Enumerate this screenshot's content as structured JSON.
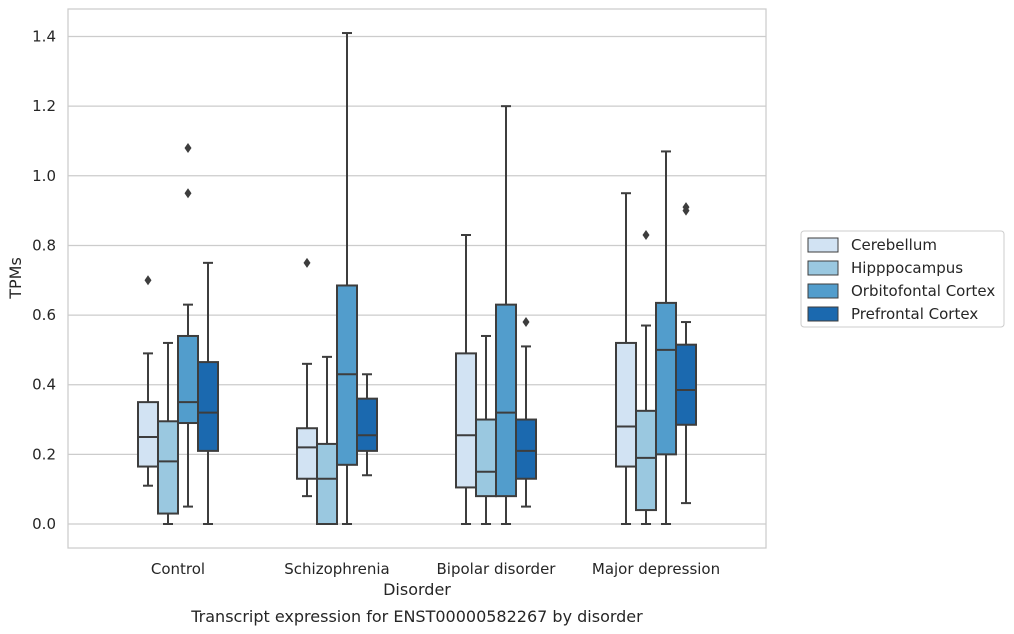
{
  "chart_data": {
    "type": "box",
    "title": "Transcript expression for ENST00000582267 by disorder",
    "xlabel": "Disorder",
    "ylabel": "TPMs",
    "ylim": [
      -0.07,
      1.48
    ],
    "yticks": [
      0.0,
      0.2,
      0.4,
      0.6,
      0.8,
      1.0,
      1.2,
      1.4
    ],
    "ytick_labels": [
      "0.0",
      "0.2",
      "0.4",
      "0.6",
      "0.8",
      "1.0",
      "1.2",
      "1.4"
    ],
    "grid": "horizontal",
    "legend_position": "right",
    "categories": [
      "Control",
      "Schizophrenia",
      "Bipolar disorder",
      "Major depression"
    ],
    "series": [
      {
        "name": "Cerebellum",
        "color": "#d2e3f3",
        "boxes": [
          {
            "min": 0.11,
            "q1": 0.165,
            "median": 0.25,
            "q3": 0.35,
            "max": 0.49,
            "outliers": [
              0.7
            ]
          },
          {
            "min": 0.08,
            "q1": 0.13,
            "median": 0.22,
            "q3": 0.275,
            "max": 0.46,
            "outliers": [
              0.75
            ]
          },
          {
            "min": 0.0,
            "q1": 0.105,
            "median": 0.255,
            "q3": 0.49,
            "max": 0.83,
            "outliers": []
          },
          {
            "min": 0.0,
            "q1": 0.165,
            "median": 0.28,
            "q3": 0.52,
            "max": 0.95,
            "outliers": []
          }
        ]
      },
      {
        "name": "Hipppocampus",
        "color": "#9ac8e0",
        "boxes": [
          {
            "min": 0.0,
            "q1": 0.03,
            "median": 0.18,
            "q3": 0.295,
            "max": 0.52,
            "outliers": []
          },
          {
            "min": 0.0,
            "q1": 0.0,
            "median": 0.13,
            "q3": 0.23,
            "max": 0.48,
            "outliers": []
          },
          {
            "min": 0.0,
            "q1": 0.08,
            "median": 0.15,
            "q3": 0.3,
            "max": 0.54,
            "outliers": []
          },
          {
            "min": 0.0,
            "q1": 0.04,
            "median": 0.19,
            "q3": 0.325,
            "max": 0.57,
            "outliers": [
              0.83
            ]
          }
        ]
      },
      {
        "name": "Orbitofontal Cortex",
        "color": "#529dcc",
        "boxes": [
          {
            "min": 0.05,
            "q1": 0.29,
            "median": 0.35,
            "q3": 0.54,
            "max": 0.63,
            "outliers": [
              0.95,
              1.08
            ]
          },
          {
            "min": 0.0,
            "q1": 0.17,
            "median": 0.43,
            "q3": 0.685,
            "max": 1.41,
            "outliers": []
          },
          {
            "min": 0.0,
            "q1": 0.08,
            "median": 0.32,
            "q3": 0.63,
            "max": 1.2,
            "outliers": []
          },
          {
            "min": 0.0,
            "q1": 0.2,
            "median": 0.5,
            "q3": 0.635,
            "max": 1.07,
            "outliers": []
          }
        ]
      },
      {
        "name": "Prefrontal Cortex",
        "color": "#1b69af",
        "boxes": [
          {
            "min": 0.0,
            "q1": 0.21,
            "median": 0.32,
            "q3": 0.465,
            "max": 0.75,
            "outliers": []
          },
          {
            "min": 0.14,
            "q1": 0.21,
            "median": 0.255,
            "q3": 0.36,
            "max": 0.43,
            "outliers": []
          },
          {
            "min": 0.05,
            "q1": 0.13,
            "median": 0.21,
            "q3": 0.3,
            "max": 0.51,
            "outliers": [
              0.58
            ]
          },
          {
            "min": 0.06,
            "q1": 0.285,
            "median": 0.385,
            "q3": 0.515,
            "max": 0.58,
            "outliers": [
              0.9,
              0.91
            ]
          }
        ]
      }
    ]
  },
  "colors": {
    "line": "#3d3d3d",
    "grid": "#cccccc",
    "frame": "#cccccc"
  }
}
